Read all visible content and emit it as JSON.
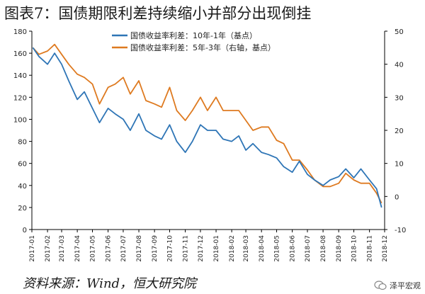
{
  "title": "图表7：国债期限利差持续缩小并部分出现倒挂",
  "source": "资料来源：Wind，恒大研究院",
  "watermark": "泽平宏观",
  "colors": {
    "series1": "#2e75b6",
    "series2": "#de7a20",
    "axis": "#000000"
  },
  "chart_data": {
    "type": "line",
    "title": "",
    "grid": false,
    "legend_position": "top-center",
    "x_tick_labels": [
      "2017-01",
      "2017-02",
      "2017-03",
      "2017-04",
      "2017-05",
      "2017-06",
      "2017-07",
      "2017-08",
      "2017-09",
      "2017-10",
      "2017-11",
      "2017-12",
      "2018-01",
      "2018-02",
      "2018-03",
      "2018-04",
      "2018-05",
      "2018-06",
      "2018-07",
      "2018-08",
      "2018-09",
      "2018-10",
      "2018-11",
      "2018-12"
    ],
    "y_left": {
      "ticks": [
        0,
        20,
        40,
        60,
        80,
        100,
        120,
        140,
        160,
        180
      ],
      "ylim": [
        0,
        180
      ]
    },
    "y_right": {
      "ticks": [
        -10,
        0,
        10,
        20,
        30,
        40,
        50
      ],
      "ylim": [
        -10,
        50
      ]
    },
    "series": [
      {
        "name": "国债收益率利差：10年-1年（基点）",
        "axis": "left",
        "color": "#2e75b6",
        "x": [
          "2017-01-03",
          "2017-01-15",
          "2017-02-01",
          "2017-02-15",
          "2017-03-01",
          "2017-03-15",
          "2017-04-01",
          "2017-04-15",
          "2017-05-01",
          "2017-05-15",
          "2017-06-01",
          "2017-06-15",
          "2017-07-01",
          "2017-07-15",
          "2017-08-01",
          "2017-08-15",
          "2017-09-01",
          "2017-09-15",
          "2017-10-01",
          "2017-10-15",
          "2017-11-01",
          "2017-11-15",
          "2017-12-01",
          "2017-12-15",
          "2018-01-01",
          "2018-01-15",
          "2018-02-01",
          "2018-02-15",
          "2018-03-01",
          "2018-03-15",
          "2018-04-01",
          "2018-04-15",
          "2018-05-01",
          "2018-05-15",
          "2018-06-01",
          "2018-06-15",
          "2018-07-01",
          "2018-07-15",
          "2018-08-01",
          "2018-08-15",
          "2018-09-01",
          "2018-09-15",
          "2018-10-01",
          "2018-10-15",
          "2018-11-01",
          "2018-11-15",
          "2018-11-25"
        ],
        "values": [
          165,
          157,
          150,
          160,
          150,
          135,
          118,
          125,
          110,
          97,
          110,
          105,
          100,
          90,
          105,
          90,
          85,
          82,
          95,
          80,
          70,
          80,
          95,
          90,
          90,
          82,
          80,
          85,
          72,
          78,
          70,
          68,
          65,
          57,
          52,
          62,
          50,
          45,
          40,
          45,
          48,
          55,
          47,
          55,
          45,
          37,
          20
        ]
      },
      {
        "name": "国债收益率利差：5年-3年（右轴，基点）",
        "axis": "right",
        "color": "#de7a20",
        "x": [
          "2017-01-03",
          "2017-01-15",
          "2017-02-01",
          "2017-02-15",
          "2017-03-01",
          "2017-03-15",
          "2017-04-01",
          "2017-04-15",
          "2017-05-01",
          "2017-05-15",
          "2017-06-01",
          "2017-06-15",
          "2017-07-01",
          "2017-07-15",
          "2017-08-01",
          "2017-08-15",
          "2017-09-01",
          "2017-09-15",
          "2017-10-01",
          "2017-10-15",
          "2017-11-01",
          "2017-11-15",
          "2017-12-01",
          "2017-12-15",
          "2018-01-01",
          "2018-01-15",
          "2018-02-01",
          "2018-02-15",
          "2018-03-01",
          "2018-03-15",
          "2018-04-01",
          "2018-04-15",
          "2018-05-01",
          "2018-05-15",
          "2018-06-01",
          "2018-06-15",
          "2018-07-01",
          "2018-07-15",
          "2018-08-01",
          "2018-08-15",
          "2018-09-01",
          "2018-09-15",
          "2018-10-01",
          "2018-10-15",
          "2018-11-01",
          "2018-11-15",
          "2018-11-25"
        ],
        "values": [
          45,
          43,
          44,
          46,
          43,
          40,
          37,
          36,
          34,
          28,
          33,
          34,
          36,
          31,
          35,
          29,
          28,
          27,
          33,
          26,
          23,
          26,
          30,
          26,
          30,
          26,
          26,
          26,
          23,
          20,
          21,
          21,
          17,
          16,
          11,
          11,
          8,
          5,
          3,
          3,
          4,
          7,
          5,
          4,
          4,
          1,
          -2
        ]
      }
    ]
  }
}
